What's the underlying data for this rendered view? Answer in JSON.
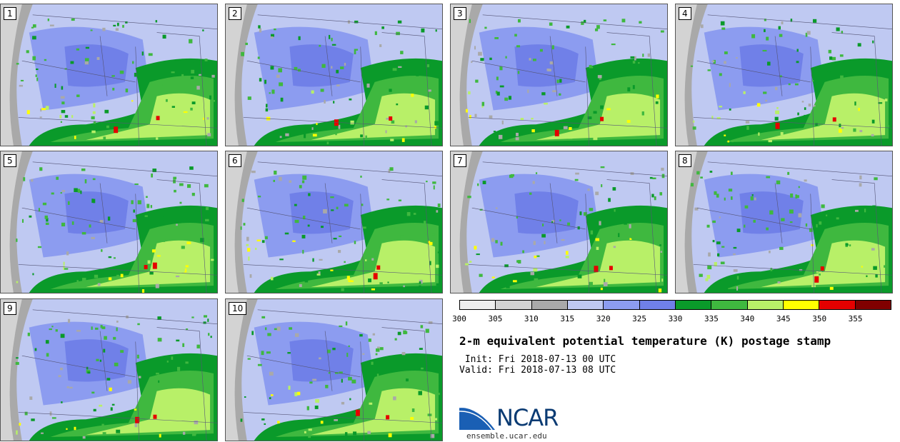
{
  "panels": [
    {
      "label": "1"
    },
    {
      "label": "2"
    },
    {
      "label": "3"
    },
    {
      "label": "4"
    },
    {
      "label": "5"
    },
    {
      "label": "6"
    },
    {
      "label": "7"
    },
    {
      "label": "8"
    },
    {
      "label": "9"
    },
    {
      "label": "10"
    }
  ],
  "colorbar": {
    "ticks": [
      "300",
      "305",
      "310",
      "315",
      "320",
      "325",
      "330",
      "335",
      "340",
      "345",
      "350",
      "355"
    ],
    "colors": [
      "#eeeeee",
      "#d3d3d3",
      "#a9a9a9",
      "#bfc9f2",
      "#8c9cf0",
      "#7080e8",
      "#0a9a2a",
      "#3fb83f",
      "#b8f068",
      "#ffff00",
      "#e50000",
      "#800000"
    ]
  },
  "title": "2-m equivalent potential temperature (K) postage stamp",
  "init": " Init: Fri 2018-07-13 00 UTC",
  "valid": "Valid: Fri 2018-07-13 08 UTC",
  "logo": {
    "text": "NCAR",
    "url": "ensemble.ucar.edu",
    "colors": [
      "#1a5fb4",
      "#0b3b73"
    ]
  }
}
